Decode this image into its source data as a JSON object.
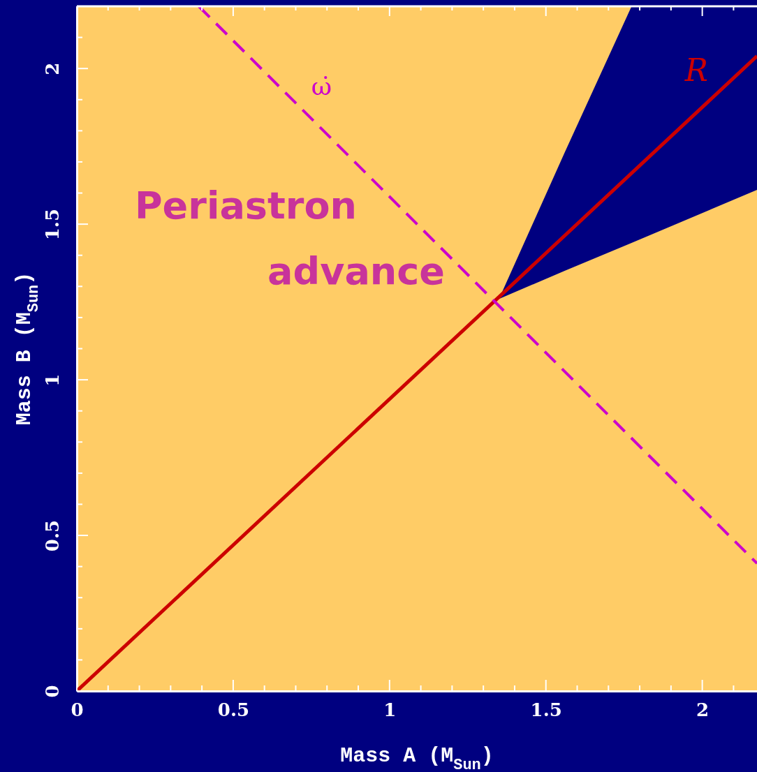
{
  "chart_data": {
    "type": "line",
    "xlabel": "Mass A (M$_{Sun}$)",
    "ylabel": "Mass B (M$_{Sun}$)",
    "xlim": [
      0,
      2.175
    ],
    "ylim": [
      0,
      2.2
    ],
    "xticks": [
      0,
      {
        "value": 0.1,
        "label": null
      },
      {
        "value": 0.2,
        "label": null
      },
      {
        "value": 0.3,
        "label": null
      },
      {
        "value": 0.4,
        "label": null
      },
      0.5,
      {
        "value": 0.6,
        "label": null
      },
      {
        "value": 0.7,
        "label": null
      },
      {
        "value": 0.8,
        "label": null
      },
      {
        "value": 0.9,
        "label": null
      },
      1,
      {
        "value": 1.1,
        "label": null
      },
      {
        "value": 1.2,
        "label": null
      },
      {
        "value": 1.3,
        "label": null
      },
      {
        "value": 1.4,
        "label": null
      },
      1.5,
      {
        "value": 1.6,
        "label": null
      },
      {
        "value": 1.7,
        "label": null
      },
      {
        "value": 1.8,
        "label": null
      },
      {
        "value": 1.9,
        "label": null
      },
      2,
      {
        "value": 2.1,
        "label": null
      }
    ],
    "yticks": [
      0,
      {
        "value": 0.1,
        "label": null
      },
      {
        "value": 0.2,
        "label": null
      },
      {
        "value": 0.3,
        "label": null
      },
      {
        "value": 0.4,
        "label": null
      },
      0.5,
      {
        "value": 0.6,
        "label": null
      },
      {
        "value": 0.7,
        "label": null
      },
      {
        "value": 0.8,
        "label": null
      },
      {
        "value": 0.9,
        "label": null
      },
      1,
      {
        "value": 1.1,
        "label": null
      },
      {
        "value": 1.2,
        "label": null
      },
      {
        "value": 1.3,
        "label": null
      },
      {
        "value": 1.4,
        "label": null
      },
      1.5,
      {
        "value": 1.6,
        "label": null
      },
      {
        "value": 1.7,
        "label": null
      },
      {
        "value": 1.8,
        "label": null
      },
      {
        "value": 1.9,
        "label": null
      },
      2,
      {
        "value": 2.1,
        "label": null
      }
    ],
    "series": [
      {
        "type": "area",
        "color": "#000080",
        "x": [
          1.35,
          1.56,
          1.774,
          2.175
        ],
        "values": [
          null,
          null,
          null,
          null
        ],
        "lower": [
          1.26,
          1.35,
          1.44,
          1.61
        ],
        "upper": [
          1.26,
          1.73,
          2.2,
          2.2
        ]
      },
      {
        "name": "R",
        "color": "#cc0000",
        "x": [
          0,
          2.175
        ],
        "values": [
          0,
          2.04
        ]
      },
      {
        "name": "ω̇",
        "color": "#cc00cc",
        "line_style": "dashed",
        "x": [
          0.39,
          2.175
        ],
        "values": [
          2.2,
          0.41
        ]
      }
    ],
    "annotations": [
      "Periastron advance"
    ]
  }
}
